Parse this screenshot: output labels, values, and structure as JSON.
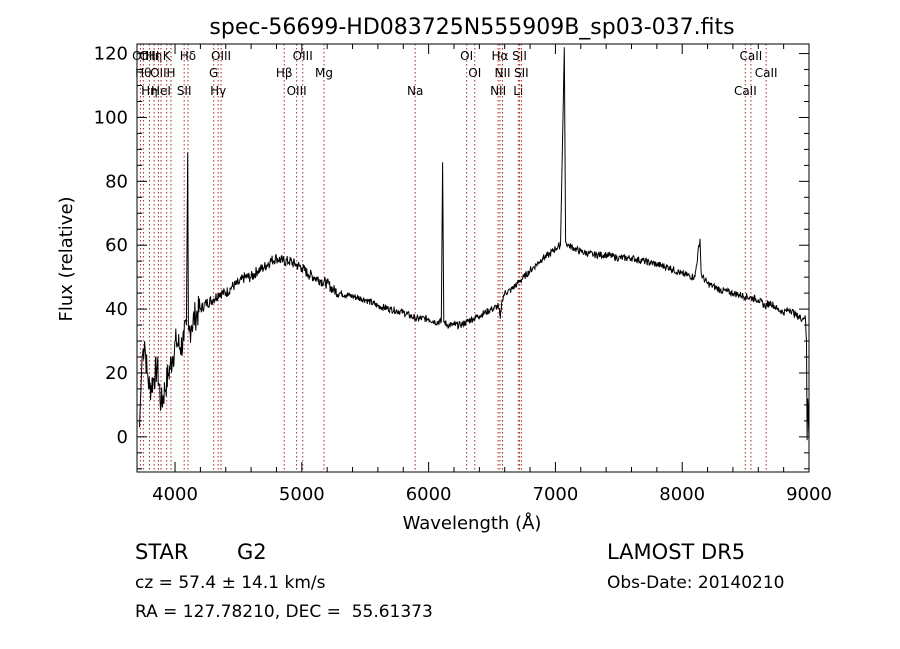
{
  "chart_data": {
    "type": "line",
    "title": "spec-56699-HD083725N555909B_sp03-037.fits",
    "xlabel": "Wavelength (Å)",
    "ylabel": "Flux (relative)",
    "xlim": [
      3700,
      9000
    ],
    "ylim": [
      -11,
      123
    ],
    "xticks": [
      4000,
      5000,
      6000,
      7000,
      8000,
      9000
    ],
    "yticks": [
      0,
      20,
      40,
      60,
      80,
      100,
      120
    ],
    "grid": false,
    "line_color": "#000000",
    "marker_color": "#a52a2a",
    "series": [
      {
        "x": [
          3720,
          3740,
          3760,
          3780,
          3800,
          3830,
          3860,
          3890,
          3920,
          3950,
          3980,
          4010,
          4040,
          4070,
          4090,
          4100,
          4105,
          4110,
          4130,
          4160,
          4200,
          4250,
          4300,
          4350,
          4400,
          4450,
          4500,
          4550,
          4600,
          4650,
          4700,
          4750,
          4800,
          4850,
          4900,
          4950,
          5000,
          5050,
          5100,
          5150,
          5200,
          5250,
          5300,
          5400,
          5500,
          5600,
          5700,
          5800,
          5900,
          6000,
          6050,
          6100,
          6110,
          6120,
          6150,
          6200,
          6250,
          6300,
          6350,
          6400,
          6450,
          6500,
          6550,
          6565,
          6580,
          6600,
          6650,
          6700,
          6750,
          6800,
          6850,
          6900,
          6950,
          7000,
          7040,
          7060,
          7070,
          7080,
          7100,
          7150,
          7200,
          7300,
          7400,
          7500,
          7600,
          7700,
          7800,
          7900,
          8000,
          8100,
          8140,
          8150,
          8160,
          8200,
          8300,
          8400,
          8500,
          8600,
          8650,
          8700,
          8750,
          8800,
          8850,
          8900,
          8950,
          8970,
          8980,
          8985,
          8990,
          9000
        ],
        "y": [
          3,
          25,
          30,
          20,
          15,
          18,
          22,
          10,
          15,
          20,
          25,
          30,
          28,
          30,
          35,
          89,
          35,
          33,
          35,
          38,
          40,
          42,
          43,
          45,
          45,
          47,
          48,
          50,
          50,
          52,
          53,
          55,
          56,
          55,
          55,
          54,
          53,
          51,
          50,
          49,
          48,
          46,
          45,
          44,
          43,
          41,
          40,
          39,
          37,
          37,
          36,
          36,
          86,
          36,
          35,
          35,
          35,
          36,
          37,
          38,
          39,
          40,
          41,
          37,
          43,
          45,
          46,
          48,
          50,
          52,
          54,
          56,
          57,
          59,
          60,
          100,
          122,
          61,
          60,
          59,
          58,
          57,
          57,
          56,
          56,
          55,
          54,
          53,
          51,
          50,
          62,
          51,
          50,
          48,
          46,
          45,
          44,
          43,
          41,
          42,
          40,
          39,
          40,
          38,
          37,
          38,
          30,
          -1,
          12,
          -1
        ]
      }
    ],
    "line_markers": [
      {
        "x": 3727,
        "labels": [
          "OII"
        ]
      },
      {
        "x": 3750,
        "labels": [
          "Hθ"
        ]
      },
      {
        "x": 3798,
        "labels": [
          "Hη",
          "OIII"
        ]
      },
      {
        "x": 3835,
        "labels": [
          "Hη"
        ]
      },
      {
        "x": 3869,
        "labels": [
          "OII"
        ]
      },
      {
        "x": 3889,
        "labels": [
          "HeI"
        ]
      },
      {
        "x": 3934,
        "labels": [
          "K"
        ]
      },
      {
        "x": 3968,
        "labels": [
          "H"
        ]
      },
      {
        "x": 4072,
        "labels": [
          "SII"
        ]
      },
      {
        "x": 4102,
        "labels": [
          "Hδ"
        ]
      },
      {
        "x": 4305,
        "labels": [
          "G"
        ]
      },
      {
        "x": 4340,
        "labels": [
          "Hγ"
        ]
      },
      {
        "x": 4363,
        "labels": [
          "OIII"
        ]
      },
      {
        "x": 4861,
        "labels": [
          "Hβ"
        ]
      },
      {
        "x": 4959,
        "labels": [
          "OIII"
        ]
      },
      {
        "x": 5007,
        "labels": [
          "OIII"
        ]
      },
      {
        "x": 5175,
        "labels": [
          "Mg"
        ]
      },
      {
        "x": 5894,
        "labels": [
          "Na"
        ]
      },
      {
        "x": 6300,
        "labels": [
          "OI"
        ]
      },
      {
        "x": 6364,
        "labels": [
          "OI"
        ]
      },
      {
        "x": 6548,
        "labels": [
          "NII"
        ]
      },
      {
        "x": 6563,
        "labels": [
          "Hα"
        ]
      },
      {
        "x": 6583,
        "labels": [
          "NII"
        ]
      },
      {
        "x": 6707,
        "labels": [
          "Li"
        ]
      },
      {
        "x": 6717,
        "labels": [
          "SII"
        ]
      },
      {
        "x": 6731,
        "labels": [
          "SII"
        ]
      },
      {
        "x": 8498,
        "labels": [
          "CaII"
        ]
      },
      {
        "x": 8542,
        "labels": [
          "CaII"
        ]
      },
      {
        "x": 8662,
        "labels": [
          "CaII"
        ]
      }
    ]
  },
  "info": {
    "object_type": "STAR",
    "subclass": "G2",
    "survey": "LAMOST DR5",
    "cz": "cz = 57.4 ± 14.1 km/s",
    "obs_date": "Obs-Date: 20140210",
    "coords": "RA = 127.78210, DEC =  55.61373"
  }
}
